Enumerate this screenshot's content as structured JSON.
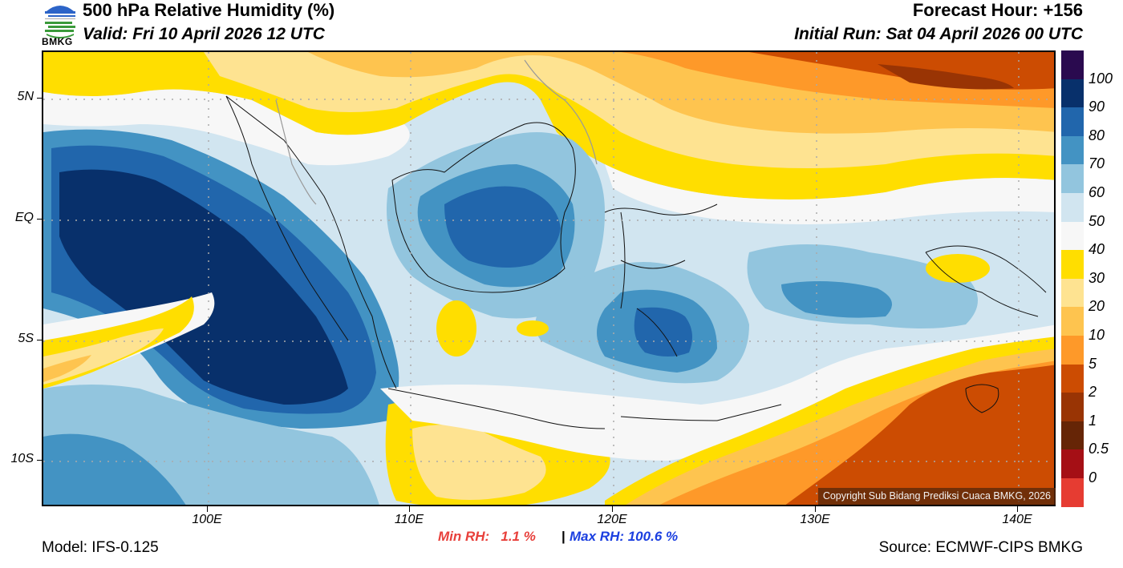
{
  "header": {
    "title": "500 hPa Relative Humidity (%)",
    "valid": "Valid: Fri 10 April 2026 12 UTC",
    "forecast_hour": "Forecast Hour: +156",
    "initial_run": "Initial Run: Sat 04 April 2026 00 UTC",
    "logo_text": "BMKG"
  },
  "axes": {
    "lat_labels": [
      "5N",
      "EQ",
      "5S",
      "10S"
    ],
    "lon_labels": [
      "100E",
      "110E",
      "120E",
      "130E",
      "140E"
    ],
    "lat_values": [
      5,
      0,
      -5,
      -10
    ],
    "lon_values": [
      100,
      110,
      120,
      130,
      140
    ],
    "lon_range": [
      92,
      142
    ],
    "lat_range": [
      -11.9,
      7
    ]
  },
  "colorbar": {
    "labels": [
      "100",
      "90",
      "80",
      "70",
      "60",
      "50",
      "40",
      "30",
      "20",
      "10",
      "5",
      "2",
      "1",
      "0.5",
      "0"
    ],
    "colors": [
      "#2a0a4f",
      "#08306b",
      "#2166ac",
      "#4393c3",
      "#92c5de",
      "#d1e5f0",
      "#f7f7f7",
      "#ffde00",
      "#fee391",
      "#fec44f",
      "#fe9929",
      "#cc4c02",
      "#993404",
      "#662506",
      "#a50f15",
      "#e63c32"
    ]
  },
  "footer": {
    "model": "Model: IFS-0.125",
    "source": "Source: ECMWF-CIPS BMKG",
    "min_rh": "Min RH:   1.1 %",
    "separator": "|",
    "max_rh": "Max RH: 100.6 %",
    "copyright": "Copyright Sub Bidang Prediksi Cuaca BMKG, 2026"
  }
}
